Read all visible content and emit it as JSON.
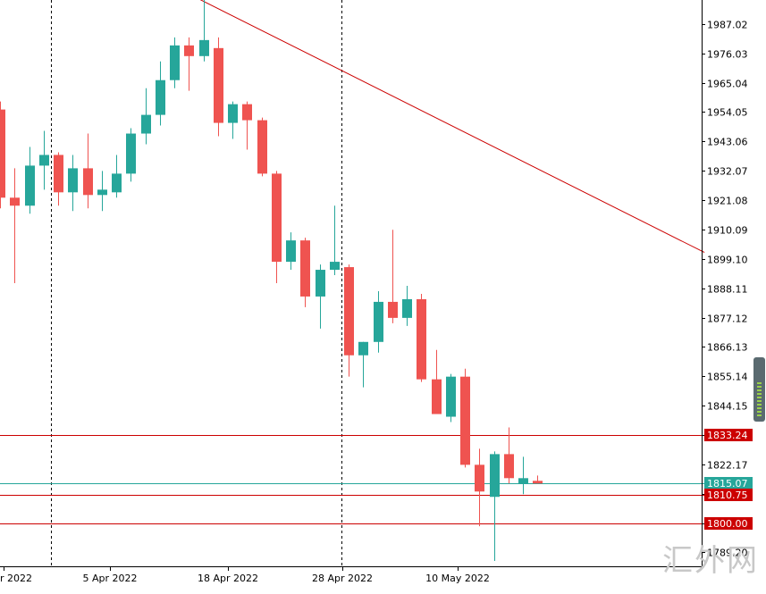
{
  "watermark": "汇外网",
  "chart_data": {
    "type": "candlestick",
    "title": "",
    "ylim": [
      1784,
      1996
    ],
    "y_ticks": [
      1987.02,
      1976.03,
      1965.04,
      1954.05,
      1943.06,
      1932.07,
      1921.08,
      1910.09,
      1899.1,
      1888.11,
      1877.12,
      1866.13,
      1855.14,
      1844.15,
      1833.16,
      1822.17,
      1811.18,
      1800.19,
      1789.2
    ],
    "y_tick_labels": [
      "1987.02",
      "1976.03",
      "1965.04",
      "1954.05",
      "1943.06",
      "1932.07",
      "1921.08",
      "1910.09",
      "1899.10",
      "1888.11",
      "1877.12",
      "1866.13",
      "1855.14",
      "1844.15",
      "",
      "1822.17",
      "",
      "",
      "1789.20"
    ],
    "x_labels": [
      {
        "index": 0,
        "label": "r 2022"
      },
      {
        "index": 8,
        "label": "5 Apr 2022"
      },
      {
        "index": 16,
        "label": "18 Apr 2022"
      },
      {
        "index": 24,
        "label": "28 Apr 2022"
      },
      {
        "index": 32,
        "label": "10 May 2022"
      }
    ],
    "period_separators": [
      4,
      24
    ],
    "horizontal_levels": [
      {
        "value": 1833.24,
        "label": "1833.24",
        "color": "#cc0000",
        "label_bg": "#cc0000"
      },
      {
        "value": 1815.07,
        "label": "1815.07",
        "color": "#26a69a",
        "label_bg": "#26a69a"
      },
      {
        "value": 1810.75,
        "label": "1810.75",
        "color": "#cc0000",
        "label_bg": "#cc0000"
      },
      {
        "value": 1800.0,
        "label": "1800.00",
        "color": "#cc0000",
        "label_bg": "#cc0000"
      }
    ],
    "trendline": {
      "from": [
        13.1,
        1998
      ],
      "to": [
        48.5,
        1901.5
      ],
      "color": "#cc0000"
    },
    "colors": {
      "up": "#26a69a",
      "down": "#ef5350"
    },
    "candles": [
      {
        "o": 1955,
        "h": 1958,
        "l": 1918,
        "c": 1922
      },
      {
        "o": 1922,
        "h": 1933,
        "l": 1890,
        "c": 1919
      },
      {
        "o": 1919,
        "h": 1941,
        "l": 1916,
        "c": 1934
      },
      {
        "o": 1934,
        "h": 1947,
        "l": 1925,
        "c": 1938
      },
      {
        "o": 1938,
        "h": 1939,
        "l": 1919,
        "c": 1924
      },
      {
        "o": 1924,
        "h": 1938,
        "l": 1917,
        "c": 1933
      },
      {
        "o": 1933,
        "h": 1946,
        "l": 1918,
        "c": 1923
      },
      {
        "o": 1923,
        "h": 1932,
        "l": 1917,
        "c": 1925
      },
      {
        "o": 1924,
        "h": 1938,
        "l": 1922,
        "c": 1931
      },
      {
        "o": 1931,
        "h": 1948,
        "l": 1928,
        "c": 1946
      },
      {
        "o": 1946,
        "h": 1963,
        "l": 1942,
        "c": 1953
      },
      {
        "o": 1953,
        "h": 1973,
        "l": 1949,
        "c": 1966
      },
      {
        "o": 1966,
        "h": 1982,
        "l": 1963,
        "c": 1979
      },
      {
        "o": 1979,
        "h": 1982,
        "l": 1962,
        "c": 1975
      },
      {
        "o": 1975,
        "h": 1996,
        "l": 1973,
        "c": 1981
      },
      {
        "o": 1978,
        "h": 1982,
        "l": 1945,
        "c": 1950
      },
      {
        "o": 1950,
        "h": 1958,
        "l": 1944,
        "c": 1957
      },
      {
        "o": 1957,
        "h": 1958,
        "l": 1940,
        "c": 1951
      },
      {
        "o": 1951,
        "h": 1952,
        "l": 1930,
        "c": 1931
      },
      {
        "o": 1931,
        "h": 1932,
        "l": 1890,
        "c": 1898
      },
      {
        "o": 1898,
        "h": 1909,
        "l": 1895,
        "c": 1906
      },
      {
        "o": 1906,
        "h": 1907,
        "l": 1881,
        "c": 1885
      },
      {
        "o": 1885,
        "h": 1897,
        "l": 1873,
        "c": 1895
      },
      {
        "o": 1895,
        "h": 1919,
        "l": 1893,
        "c": 1898
      },
      {
        "o": 1896,
        "h": 1897,
        "l": 1855,
        "c": 1863
      },
      {
        "o": 1863,
        "h": 1868,
        "l": 1851,
        "c": 1868
      },
      {
        "o": 1868,
        "h": 1887,
        "l": 1864,
        "c": 1883
      },
      {
        "o": 1883,
        "h": 1910,
        "l": 1875,
        "c": 1877
      },
      {
        "o": 1877,
        "h": 1889,
        "l": 1874,
        "c": 1884
      },
      {
        "o": 1884,
        "h": 1886,
        "l": 1853,
        "c": 1854
      },
      {
        "o": 1854,
        "h": 1865,
        "l": 1842,
        "c": 1841
      },
      {
        "o": 1840,
        "h": 1856,
        "l": 1838,
        "c": 1855
      },
      {
        "o": 1855,
        "h": 1858,
        "l": 1821,
        "c": 1822
      },
      {
        "o": 1822,
        "h": 1828,
        "l": 1799,
        "c": 1812
      },
      {
        "o": 1810,
        "h": 1827,
        "l": 1786,
        "c": 1826
      },
      {
        "o": 1826,
        "h": 1836,
        "l": 1815,
        "c": 1817
      },
      {
        "o": 1815,
        "h": 1825,
        "l": 1811,
        "c": 1817
      },
      {
        "o": 1816,
        "h": 1818,
        "l": 1815,
        "c": 1815
      }
    ]
  }
}
